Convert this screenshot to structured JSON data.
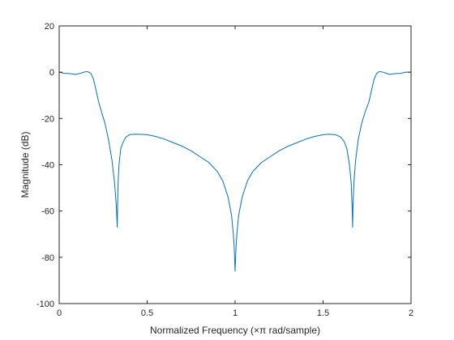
{
  "chart_data": {
    "type": "line",
    "title": "",
    "xlabel": "Normalized Frequency (×π rad/sample)",
    "ylabel": "Magnitude (dB)",
    "xlim": [
      0,
      2
    ],
    "ylim": [
      -100,
      20
    ],
    "xticks": [
      0,
      0.5,
      1,
      1.5,
      2
    ],
    "xtick_labels": [
      "0",
      "0.5",
      "1",
      "1.5",
      "2"
    ],
    "yticks": [
      -100,
      -80,
      -60,
      -40,
      -20,
      0,
      20
    ],
    "ytick_labels": [
      "-100",
      "-80",
      "-60",
      "-40",
      "-20",
      "0",
      "20"
    ],
    "grid": false,
    "box": true,
    "series": [
      {
        "color": "#0072BD",
        "x": [
          0,
          0.03,
          0.06,
          0.09,
          0.12,
          0.14,
          0.16,
          0.18,
          0.195,
          0.21,
          0.225,
          0.24,
          0.26,
          0.28,
          0.3,
          0.315,
          0.325,
          0.33,
          0.332,
          0.335,
          0.34,
          0.35,
          0.365,
          0.38,
          0.4,
          0.43,
          0.47,
          0.5,
          0.55,
          0.6,
          0.65,
          0.7,
          0.75,
          0.8,
          0.85,
          0.9,
          0.93,
          0.96,
          0.98,
          0.99,
          0.995,
          1.0,
          1.005,
          1.01,
          1.02,
          1.04,
          1.07,
          1.1,
          1.15,
          1.2,
          1.25,
          1.3,
          1.35,
          1.4,
          1.45,
          1.5,
          1.53,
          1.57,
          1.6,
          1.62,
          1.635,
          1.65,
          1.66,
          1.665,
          1.668,
          1.67,
          1.675,
          1.685,
          1.7,
          1.72,
          1.74,
          1.76,
          1.775,
          1.79,
          1.805,
          1.82,
          1.84,
          1.86,
          1.88,
          1.91,
          1.94,
          1.97,
          2.0
        ],
        "y": [
          0,
          -0.5,
          -0.6,
          -1,
          -0.5,
          0,
          0.3,
          -0.5,
          -3,
          -8,
          -13,
          -17,
          -22,
          -29,
          -38,
          -48,
          -58,
          -67,
          -58,
          -48,
          -40,
          -33,
          -30,
          -28,
          -27,
          -26.8,
          -26.9,
          -27,
          -27.8,
          -29,
          -30.5,
          -32,
          -34,
          -36.5,
          -39,
          -43,
          -47,
          -54,
          -62,
          -70,
          -76,
          -86,
          -76,
          -70,
          -62,
          -54,
          -47,
          -43,
          -39,
          -36.5,
          -34,
          -32,
          -30.5,
          -29,
          -27.8,
          -27,
          -26.8,
          -27,
          -28,
          -30,
          -33,
          -40,
          -48,
          -58,
          -67,
          -58,
          -48,
          -38,
          -29,
          -22,
          -17,
          -13,
          -8,
          -3,
          -0.5,
          0.3,
          0,
          -0.5,
          -1,
          -0.6,
          -0.5,
          0,
          0
        ]
      }
    ]
  }
}
